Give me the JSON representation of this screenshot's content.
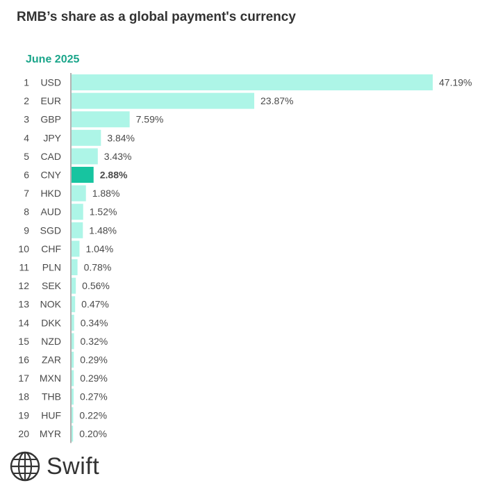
{
  "title": "RMB’s share as a global payment's currency",
  "subtitle": "June 2025",
  "brand": {
    "name": "Swift",
    "icon": "globe-icon"
  },
  "colors": {
    "bar": "#adf5e7",
    "highlight_bar": "#17c4a0",
    "subtitle": "#1aa58a",
    "axis_line": "#666666"
  },
  "chart_data": {
    "type": "bar",
    "orientation": "horizontal",
    "title": "RMB’s share as a global payment's currency",
    "subtitle": "June 2025",
    "ranks": [
      "1",
      "2",
      "3",
      "4",
      "5",
      "6",
      "7",
      "8",
      "9",
      "10",
      "11",
      "12",
      "13",
      "14",
      "15",
      "16",
      "17",
      "18",
      "19",
      "20"
    ],
    "categories": [
      "USD",
      "EUR",
      "GBP",
      "JPY",
      "CAD",
      "CNY",
      "HKD",
      "AUD",
      "SGD",
      "CHF",
      "PLN",
      "SEK",
      "NOK",
      "DKK",
      "NZD",
      "ZAR",
      "MXN",
      "THB",
      "HUF",
      "MYR"
    ],
    "values": [
      47.19,
      23.87,
      7.59,
      3.84,
      3.43,
      2.88,
      1.88,
      1.52,
      1.48,
      1.04,
      0.78,
      0.56,
      0.47,
      0.34,
      0.32,
      0.29,
      0.29,
      0.27,
      0.22,
      0.2
    ],
    "labels": [
      "47.19%",
      "23.87%",
      "7.59%",
      "3.84%",
      "3.43%",
      "2.88%",
      "1.88%",
      "1.52%",
      "1.48%",
      "1.04%",
      "0.78%",
      "0.56%",
      "0.47%",
      "0.34%",
      "0.32%",
      "0.29%",
      "0.29%",
      "0.27%",
      "0.22%",
      "0.20%"
    ],
    "highlight": "CNY",
    "unit": "%",
    "xlim": [
      0,
      47.19
    ],
    "grid": false
  }
}
